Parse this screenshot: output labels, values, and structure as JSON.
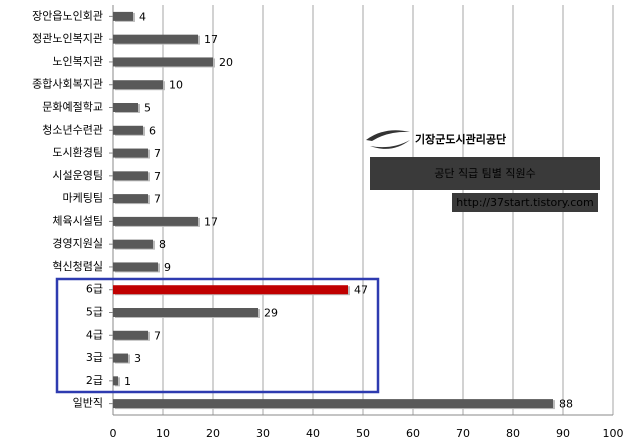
{
  "chart_data": {
    "type": "hbar",
    "categories": [
      "장안읍노인회관",
      "정관노인복지관",
      "노인복지관",
      "종합사회복지관",
      "문화예절학교",
      "청소년수련관",
      "도시환경팀",
      "시설운영팀",
      "마케팅팀",
      "체육시설팀",
      "경영지원실",
      "혁신청렴실",
      "6급",
      "5급",
      "4급",
      "3급",
      "2급",
      "일반직"
    ],
    "values": [
      4,
      17,
      20,
      10,
      5,
      6,
      7,
      7,
      7,
      17,
      8,
      9,
      47,
      29,
      7,
      3,
      1,
      88
    ],
    "colors": [
      "#595959",
      "#595959",
      "#595959",
      "#595959",
      "#595959",
      "#595959",
      "#595959",
      "#595959",
      "#595959",
      "#595959",
      "#595959",
      "#595959",
      "#c00000",
      "#595959",
      "#595959",
      "#595959",
      "#595959",
      "#595959"
    ],
    "xlim": [
      0,
      100
    ],
    "xticks": [
      0,
      10,
      20,
      30,
      40,
      50,
      60,
      70,
      80,
      90,
      100
    ],
    "grid": true,
    "annotations": {
      "logo": "기장군도시관리공단",
      "title": "공단 직급 팀별 직원수",
      "url": "http://37start.tistory.com"
    }
  }
}
